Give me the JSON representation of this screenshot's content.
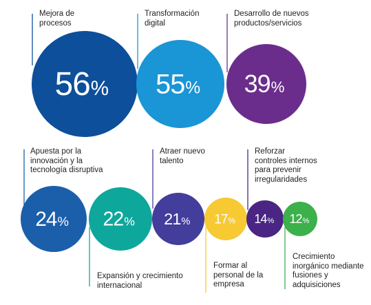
{
  "chart_data": {
    "type": "bubble",
    "unit": "%",
    "items": [
      {
        "label": "Mejora de\nprocesos",
        "value": 56,
        "color": "#0d4f9a"
      },
      {
        "label": "Transformación\ndigital",
        "value": 55,
        "color": "#1a95d6"
      },
      {
        "label": "Desarrollo de nuevos\nproductos/servicios",
        "value": 39,
        "color": "#6b2d8c"
      },
      {
        "label": "Apuesta por la\ninnovación y la\ntecnología disruptiva",
        "value": 24,
        "color": "#1b5faa"
      },
      {
        "label": "Expansión y crecimiento\ninternacional",
        "value": 22,
        "color": "#0ea79b"
      },
      {
        "label": "Atraer nuevo\ntalento",
        "value": 21,
        "color": "#433d9c"
      },
      {
        "label": "Formar al\npersonal de la\nempresa",
        "value": 17,
        "color": "#f7c933"
      },
      {
        "label": "Reforzar\ncontroles internos\npara prevenir\nirregularidades",
        "value": 14,
        "color": "#4a2583"
      },
      {
        "label": "Crecimiento\ninorgánico mediante\nfusiones y\nadquisiciones",
        "value": 12,
        "color": "#3cb04a"
      }
    ]
  }
}
